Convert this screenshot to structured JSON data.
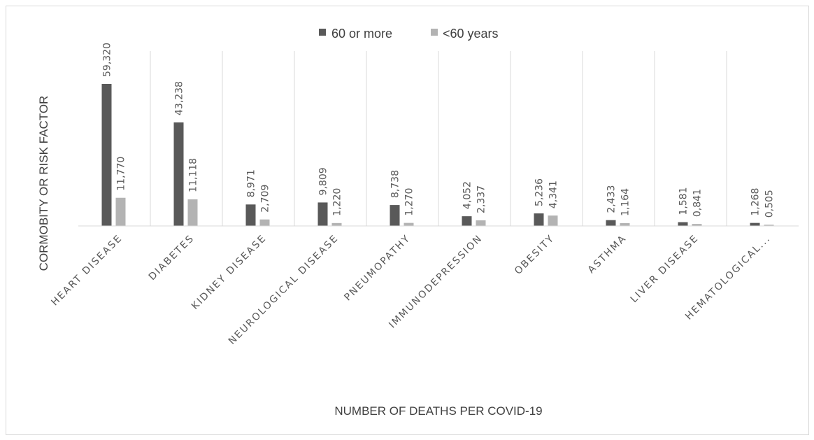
{
  "chart_data": {
    "type": "bar",
    "title": "",
    "xlabel": "NUMBER OF DEATHS PER COVID-19",
    "ylabel": "CORMOBITY OR RISK FACTOR",
    "categories": [
      "HEART DISEASE",
      "DIABETES",
      "KIDNEY DISEASE",
      "NEUROLOGICAL DISEASE",
      "PNEUMOPATHY",
      "IMMUNODEPRESSION",
      "OBESITY",
      "ASTHMA",
      "LIVER DISEASE",
      "HEMATOLOGICAL..."
    ],
    "series": [
      {
        "name": "60 or more",
        "color": "#595959",
        "values": [
          59320,
          43238,
          8971,
          9809,
          8738,
          4052,
          5236,
          2433,
          1581,
          1268
        ],
        "labels": [
          "59,320",
          "43,238",
          "8,971",
          "9,809",
          "8,738",
          "4,052",
          "5,236",
          "2,433",
          "1,581",
          "1,268"
        ]
      },
      {
        "name": "<60 years",
        "color": "#b3b3b3",
        "values": [
          11770,
          11118,
          2709,
          1220,
          1270,
          2337,
          4341,
          1164,
          841,
          505
        ],
        "labels": [
          "11,770",
          "11,118",
          "2,709",
          "1,220",
          "1,270",
          "2,337",
          "4,341",
          "1,164",
          "0,841",
          "0,505"
        ]
      }
    ],
    "ylim": [
      0,
      70000
    ],
    "grid": "vertical separators between categories",
    "legend_position": "top-center"
  }
}
